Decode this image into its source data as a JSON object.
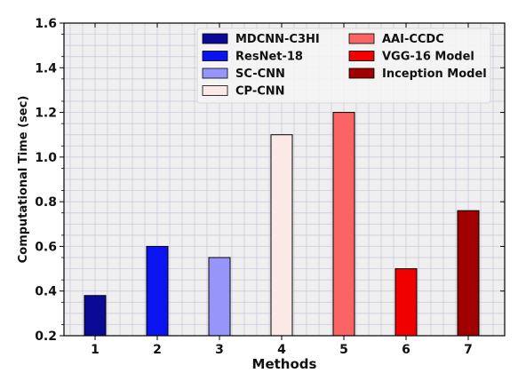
{
  "chart_data": {
    "type": "bar",
    "xlabel": "Methods",
    "ylabel": "Computational Time (sec)",
    "ylim": [
      0.2,
      1.6
    ],
    "yticks": [
      "0.2",
      "0.4",
      "0.6",
      "0.8",
      "1.0",
      "1.2",
      "1.4",
      "1.6"
    ],
    "categories": [
      "1",
      "2",
      "3",
      "4",
      "5",
      "6",
      "7"
    ],
    "grid": true,
    "legend_position": "top-right",
    "series": [
      {
        "name": "MDCNN-C3HI",
        "category": "1",
        "value": 0.38,
        "color": "#0a0a96"
      },
      {
        "name": "ResNet-18",
        "category": "2",
        "value": 0.6,
        "color": "#0a14f0"
      },
      {
        "name": "SC-CNN",
        "category": "3",
        "value": 0.55,
        "color": "#9696fa"
      },
      {
        "name": "CP-CNN",
        "category": "4",
        "value": 1.1,
        "color": "#fde8e8"
      },
      {
        "name": "AAI-CCDC",
        "category": "5",
        "value": 1.2,
        "color": "#fa6464"
      },
      {
        "name": "VGG-16 Model",
        "category": "6",
        "value": 0.5,
        "color": "#f00000"
      },
      {
        "name": "Inception Model",
        "category": "7",
        "value": 0.76,
        "color": "#a00000"
      }
    ]
  }
}
